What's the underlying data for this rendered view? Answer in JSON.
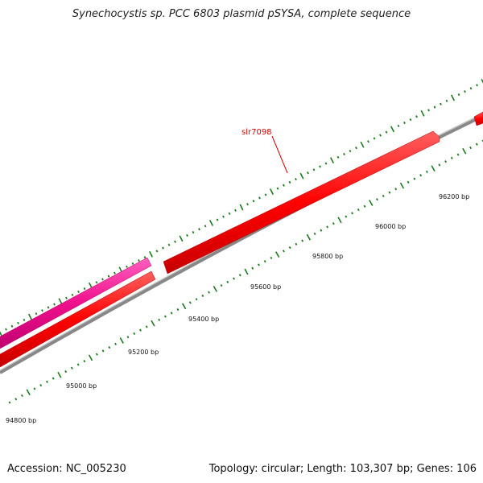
{
  "title": "Synechocystis sp. PCC 6803 plasmid pSYSA, complete sequence",
  "colors": {
    "forward_gene": "#ff0000",
    "reverse_gene": "#ff0000",
    "rna_gene": "#e6007e",
    "backbone": "#888888",
    "tick": "#1a7a1a",
    "label": "#dd0000"
  },
  "gene_label": "slr7098",
  "ticks": [
    "94800 bp",
    "95000 bp",
    "95200 bp",
    "95400 bp",
    "95600 bp",
    "95800 bp",
    "96000 bp",
    "96200 bp"
  ],
  "footer": {
    "accession": "Accession: NC_005230",
    "summary": "Topology: circular; Length: 103,307 bp; Genes: 106"
  }
}
